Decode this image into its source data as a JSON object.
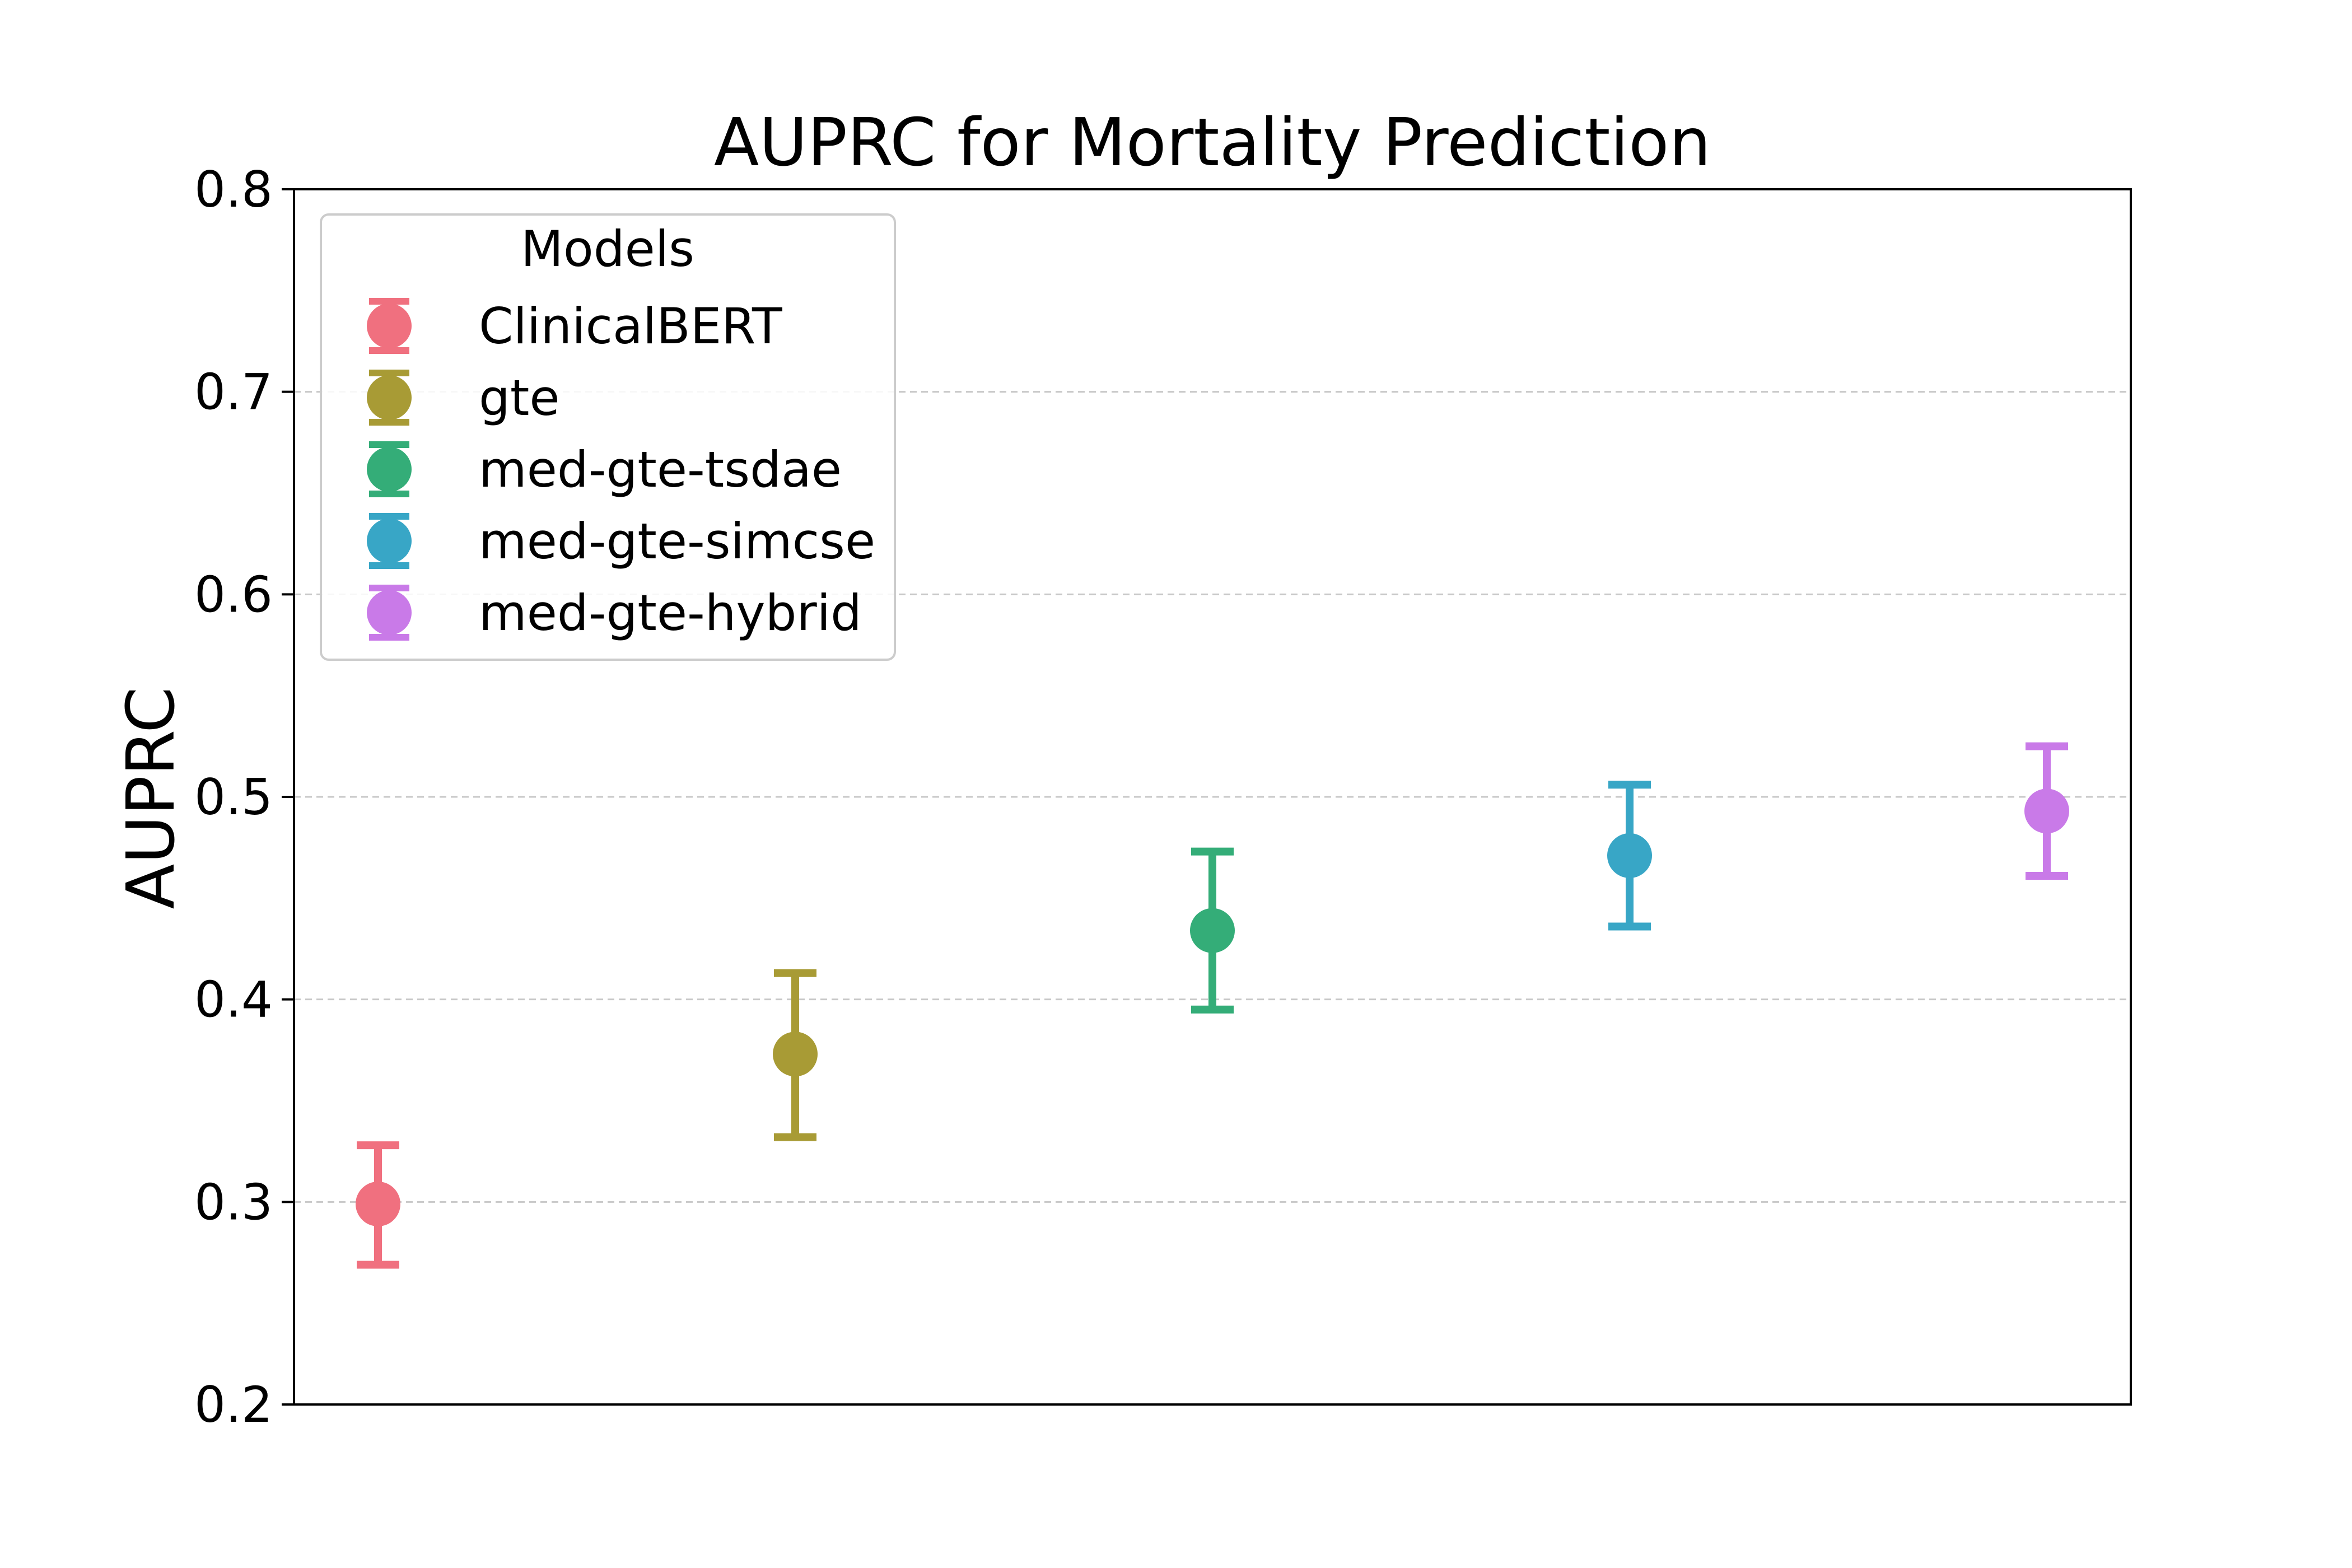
{
  "chart_data": {
    "type": "scatter",
    "title": "AUPRC for Mortality Prediction",
    "xlabel": "",
    "ylabel": "AUPRC",
    "ylim": [
      0.2,
      0.8
    ],
    "yticks": [
      "0.2",
      "0.3",
      "0.4",
      "0.5",
      "0.6",
      "0.7",
      "0.8"
    ],
    "grid": "horizontal dashed",
    "legend": {
      "title": "Models",
      "position": "top-left"
    },
    "series": [
      {
        "name": "ClinicalBERT",
        "value": 0.299,
        "lower": 0.269,
        "upper": 0.328,
        "color": "#f0707f"
      },
      {
        "name": "gte",
        "value": 0.373,
        "lower": 0.332,
        "upper": 0.413,
        "color": "#a89b35"
      },
      {
        "name": "med-gte-tsdae",
        "value": 0.434,
        "lower": 0.395,
        "upper": 0.473,
        "color": "#34ad78"
      },
      {
        "name": "med-gte-simcse",
        "value": 0.471,
        "lower": 0.436,
        "upper": 0.506,
        "color": "#38a6c6"
      },
      {
        "name": "med-gte-hybrid",
        "value": 0.493,
        "lower": 0.461,
        "upper": 0.525,
        "color": "#c97ae8"
      }
    ]
  }
}
